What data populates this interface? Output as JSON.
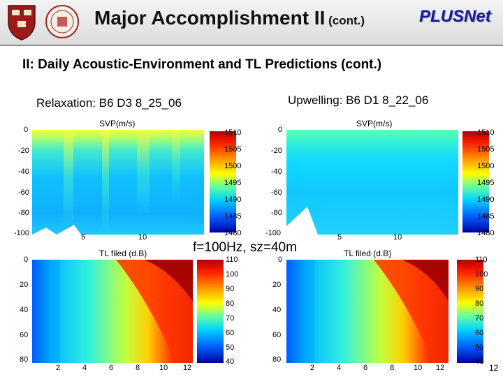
{
  "header": {
    "title_main": "Major Accomplishment II",
    "title_small": " (cont.)",
    "brand": "PLUSNet"
  },
  "subtitle": "II:  Daily Acoustic-Environment and TL Predictions (cont.)",
  "panels": {
    "left_title": "Relaxation: B6 D3 8_25_06",
    "right_title": "Upwelling: B6 D1 8_22_06",
    "svp_label": "SVP(m/s)",
    "tl_label": "TL filed (d.B)",
    "center_note": "f=100Hz, sz=40m"
  },
  "chart_data": [
    {
      "type": "heatmap",
      "title": "SVP(m/s)",
      "panel": "Relaxation: B6 D3 8_25_06",
      "x_ticks": [
        "5",
        "10"
      ],
      "y_ticks": [
        "0",
        "-20",
        "-40",
        "-60",
        "-80",
        "-100"
      ],
      "colorbar_ticks": [
        "1510",
        "1505",
        "1500",
        "1495",
        "1490",
        "1485",
        "1480"
      ],
      "colorbar_range": [
        1480,
        1510
      ]
    },
    {
      "type": "heatmap",
      "title": "SVP(m/s)",
      "panel": "Upwelling: B6 D1 8_22_06",
      "x_ticks": [
        "5",
        "10"
      ],
      "y_ticks": [
        "0",
        "-20",
        "-40",
        "-60",
        "-80",
        "-100"
      ],
      "colorbar_ticks": [
        "1510",
        "1505",
        "1500",
        "1495",
        "1490",
        "1485",
        "1480"
      ],
      "colorbar_range": [
        1480,
        1510
      ]
    },
    {
      "type": "heatmap",
      "title": "TL filed (d.B)",
      "panel": "Relaxation: B6 D3 8_25_06",
      "x_ticks": [
        "2",
        "4",
        "6",
        "8",
        "10",
        "12"
      ],
      "y_ticks": [
        "0",
        "20",
        "40",
        "60",
        "80"
      ],
      "colorbar_ticks": [
        "110",
        "100",
        "90",
        "80",
        "70",
        "60",
        "50",
        "40"
      ],
      "colorbar_range": [
        40,
        110
      ]
    },
    {
      "type": "heatmap",
      "title": "TL filed (d.B)",
      "panel": "Upwelling: B6 D1 8_22_06",
      "x_ticks": [
        "2",
        "4",
        "6",
        "8",
        "10",
        "12"
      ],
      "y_ticks": [
        "0",
        "20",
        "40",
        "60",
        "80"
      ],
      "colorbar_ticks": [
        "110",
        "100",
        "90",
        "80",
        "70",
        "60",
        "50",
        "40"
      ],
      "colorbar_range": [
        40,
        110
      ]
    }
  ],
  "page_number": "12"
}
